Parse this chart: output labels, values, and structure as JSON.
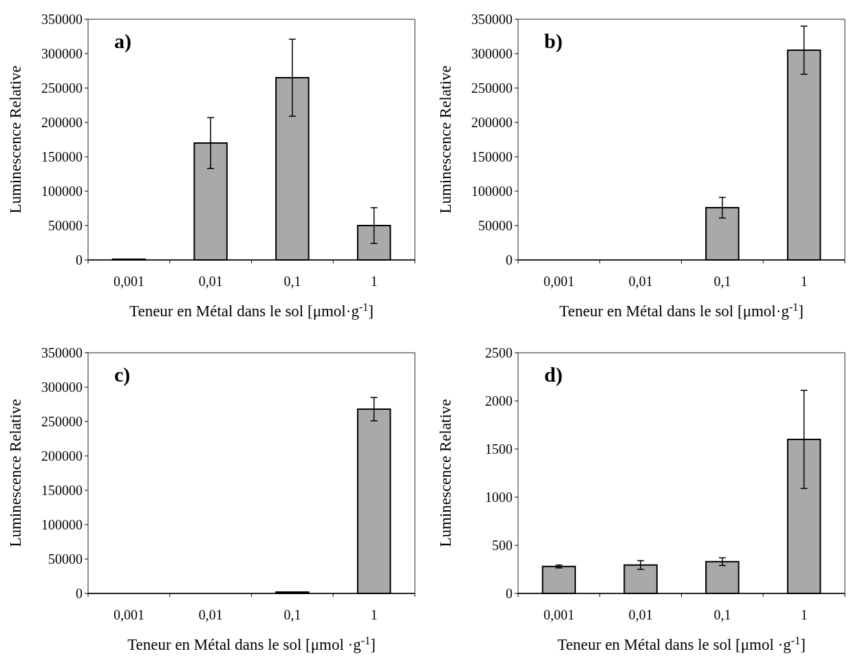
{
  "chart_data": [
    {
      "type": "bar",
      "title": "a)",
      "categories": [
        "0,001",
        "0,01",
        "0,1",
        "1"
      ],
      "values": [
        1000,
        170000,
        265000,
        50000
      ],
      "errors": [
        null,
        37000,
        56000,
        26000
      ],
      "color": "#a9a9a9",
      "ylim": [
        0,
        350000
      ],
      "yticks": [
        0,
        50000,
        100000,
        150000,
        200000,
        250000,
        300000,
        350000
      ],
      "xlabel": "Teneur en Métal dans le sol [μmol·g$^{-1}$]",
      "ylabel": "Luminescence Relative",
      "grid": false
    },
    {
      "type": "bar",
      "title": "b)",
      "categories": [
        "0,001",
        "0,01",
        "0,1",
        "1"
      ],
      "values": [
        0,
        0,
        76000,
        305000
      ],
      "errors": [
        null,
        null,
        15000,
        35000
      ],
      "color": "#a9a9a9",
      "ylim": [
        0,
        350000
      ],
      "yticks": [
        0,
        50000,
        100000,
        150000,
        200000,
        250000,
        300000,
        350000
      ],
      "xlabel": "Teneur en Métal dans le sol [μmol·g$^{-1}$]",
      "ylabel": "Luminescence Relative",
      "grid": false
    },
    {
      "type": "bar",
      "title": "c)",
      "categories": [
        "0,001",
        "0,01",
        "0,1",
        "1"
      ],
      "values": [
        0,
        0,
        2000,
        268000
      ],
      "errors": [
        null,
        null,
        null,
        17000
      ],
      "color": "#a9a9a9",
      "ylim": [
        0,
        350000
      ],
      "yticks": [
        0,
        50000,
        100000,
        150000,
        200000,
        250000,
        300000,
        350000
      ],
      "xlabel": "Teneur en Métal dans le sol [μmol ·g$^{-1}$]",
      "ylabel": "Luminescence Relative",
      "grid": false
    },
    {
      "type": "bar",
      "title": "d)",
      "categories": [
        "0,001",
        "0,01",
        "0,1",
        "1"
      ],
      "values": [
        280,
        295,
        330,
        1600
      ],
      "errors": [
        15,
        45,
        40,
        510
      ],
      "color": "#a9a9a9",
      "ylim": [
        0,
        2500
      ],
      "yticks": [
        0,
        500,
        1000,
        1500,
        2000,
        2500
      ],
      "xlabel": "Teneur en Métal dans le sol [μmol ·g$^{-1}$]",
      "ylabel": "Luminescence Relative",
      "grid": false
    }
  ]
}
